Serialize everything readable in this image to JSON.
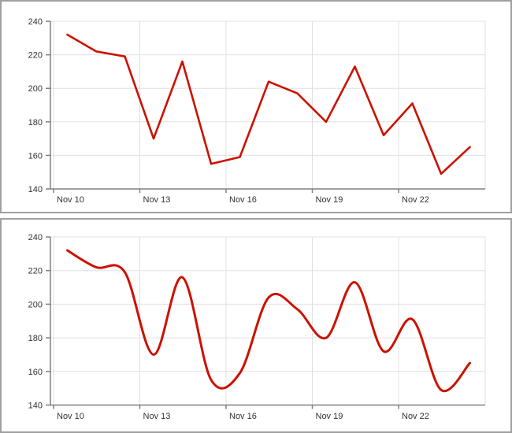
{
  "colors": {
    "series_red": "#cc1100",
    "grid": "#e0e0e0",
    "axis": "#808080",
    "tick_label": "#333333",
    "panel_border": "#a0a0a0",
    "background": "#ffffff"
  },
  "chart_data": [
    {
      "type": "line",
      "title": "",
      "interpolation": "linear",
      "x": [
        "Nov 10",
        "Nov 11",
        "Nov 12",
        "Nov 13",
        "Nov 14",
        "Nov 15",
        "Nov 16",
        "Nov 17",
        "Nov 18",
        "Nov 19",
        "Nov 20",
        "Nov 21",
        "Nov 22",
        "Nov 23",
        "Nov 24"
      ],
      "values": [
        232,
        222,
        219,
        170,
        216,
        155,
        159,
        204,
        197,
        180,
        213,
        172,
        191,
        149,
        165
      ],
      "x_tick_labels": [
        "Nov 10",
        "Nov 13",
        "Nov 16",
        "Nov 19",
        "Nov 22"
      ],
      "y_ticks": [
        140,
        160,
        180,
        200,
        220,
        240
      ],
      "ylim": [
        140,
        240
      ],
      "grid": true,
      "legend": "none",
      "line_color": "#cc1100"
    },
    {
      "type": "line",
      "title": "",
      "interpolation": "smooth",
      "x": [
        "Nov 10",
        "Nov 11",
        "Nov 12",
        "Nov 13",
        "Nov 14",
        "Nov 15",
        "Nov 16",
        "Nov 17",
        "Nov 18",
        "Nov 19",
        "Nov 20",
        "Nov 21",
        "Nov 22",
        "Nov 23",
        "Nov 24"
      ],
      "values": [
        232,
        222,
        219,
        170,
        216,
        155,
        159,
        204,
        197,
        180,
        213,
        172,
        191,
        149,
        165
      ],
      "x_tick_labels": [
        "Nov 10",
        "Nov 13",
        "Nov 16",
        "Nov 19",
        "Nov 22"
      ],
      "y_ticks": [
        140,
        160,
        180,
        200,
        220,
        240
      ],
      "ylim": [
        140,
        240
      ],
      "grid": true,
      "legend": "none",
      "line_color": "#cc1100"
    }
  ]
}
